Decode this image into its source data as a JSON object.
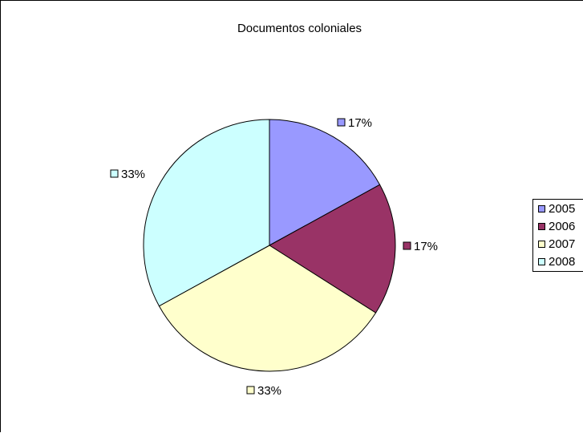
{
  "chart_data": {
    "type": "pie",
    "title": "Documentos coloniales",
    "categories": [
      "2005",
      "2006",
      "2007",
      "2008"
    ],
    "values": [
      17,
      17,
      33,
      33
    ],
    "data_labels": [
      "17%",
      "17%",
      "33%",
      "33%"
    ],
    "colors": [
      "#9999ff",
      "#993366",
      "#ffffcc",
      "#ccffff"
    ],
    "legend_position": "right"
  }
}
